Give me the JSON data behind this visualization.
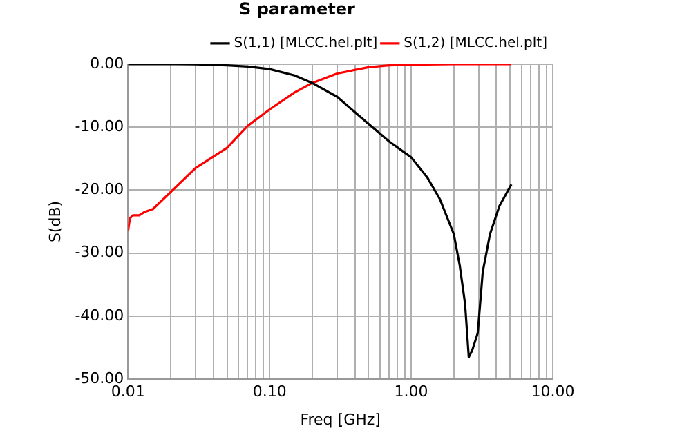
{
  "chart_data": {
    "type": "line",
    "title": "S parameter",
    "xlabel": "Freq [GHz]",
    "ylabel": "S(dB)",
    "log": "x",
    "grid": true,
    "legend": "top right",
    "marker": "none",
    "line_style": "solid",
    "xlim": [
      0.01,
      10
    ],
    "ylim": [
      -50,
      0
    ],
    "xticks": [
      {
        "value": 0.01,
        "label": "0.01"
      },
      {
        "value": 0.02,
        "label": null
      },
      {
        "value": 0.03,
        "label": null
      },
      {
        "value": 0.04,
        "label": null
      },
      {
        "value": 0.05,
        "label": null
      },
      {
        "value": 0.06,
        "label": null
      },
      {
        "value": 0.07,
        "label": null
      },
      {
        "value": 0.08,
        "label": null
      },
      {
        "value": 0.09,
        "label": null
      },
      {
        "value": 0.1,
        "label": "0.10"
      },
      {
        "value": 0.2,
        "label": null
      },
      {
        "value": 0.3,
        "label": null
      },
      {
        "value": 0.4,
        "label": null
      },
      {
        "value": 0.5,
        "label": null
      },
      {
        "value": 0.6,
        "label": null
      },
      {
        "value": 0.7,
        "label": null
      },
      {
        "value": 0.8,
        "label": null
      },
      {
        "value": 0.9,
        "label": null
      },
      {
        "value": 1,
        "label": "1.00"
      },
      {
        "value": 2,
        "label": null
      },
      {
        "value": 3,
        "label": null
      },
      {
        "value": 4,
        "label": null
      },
      {
        "value": 5,
        "label": null
      },
      {
        "value": 6,
        "label": null
      },
      {
        "value": 7,
        "label": null
      },
      {
        "value": 8,
        "label": null
      },
      {
        "value": 9,
        "label": null
      },
      {
        "value": 10,
        "label": "10.00"
      }
    ],
    "yticks": [
      {
        "value": 0,
        "label": "0.00"
      },
      {
        "value": -10,
        "label": "-10.00"
      },
      {
        "value": -20,
        "label": "-20.00"
      },
      {
        "value": -30,
        "label": "-30.00"
      },
      {
        "value": -40,
        "label": "-40.00"
      },
      {
        "value": -50,
        "label": "-50.00"
      }
    ],
    "series": [
      {
        "name": "S(1,1) [MLCC.hel.plt]",
        "color": "#000000",
        "x": [
          0.01,
          0.02,
          0.03,
          0.05,
          0.07,
          0.1,
          0.15,
          0.2,
          0.3,
          0.5,
          0.7,
          1.0,
          1.3,
          1.6,
          2.0,
          2.2,
          2.4,
          2.55,
          2.69,
          2.95,
          3.2,
          3.6,
          4.2,
          5.1
        ],
        "values": [
          0,
          0,
          -0.05,
          -0.2,
          -0.4,
          -0.8,
          -1.8,
          -3,
          -5.2,
          -9.5,
          -12.3,
          -14.8,
          -18,
          -21.5,
          -27,
          -31.9,
          -38,
          -46.5,
          -45.5,
          -42.7,
          -33,
          -27,
          -22.5,
          -19.1
        ]
      },
      {
        "name": "S(1,2) [MLCC.hel.plt]",
        "color": "#ff0000",
        "x": [
          0.01,
          0.0103,
          0.0108,
          0.012,
          0.013,
          0.015,
          0.02,
          0.03,
          0.05,
          0.07,
          0.1,
          0.15,
          0.2,
          0.3,
          0.5,
          0.7,
          1.0,
          2.0,
          5.1
        ],
        "values": [
          -26.5,
          -24.5,
          -24,
          -24,
          -23.5,
          -23,
          -20.3,
          -16.5,
          -13.3,
          -9.8,
          -7.2,
          -4.5,
          -3,
          -1.5,
          -0.5,
          -0.2,
          -0.1,
          0,
          0
        ]
      }
    ]
  }
}
